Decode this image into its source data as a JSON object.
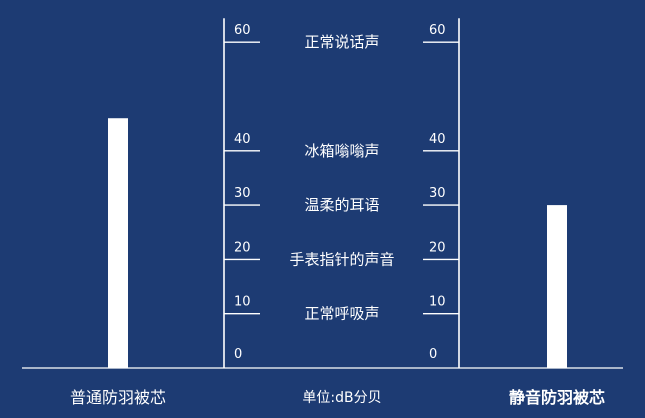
{
  "colors": {
    "background": "#1d3b73",
    "foreground": "#ffffff"
  },
  "unit_label": "单位:dB分贝",
  "chart_data": {
    "type": "bar",
    "categories": [
      "普通防羽被芯",
      "静音防羽被芯"
    ],
    "values": [
      46,
      30
    ],
    "ylim": [
      0,
      60
    ],
    "yticks": [
      0,
      10,
      20,
      30,
      40,
      60
    ],
    "reference_levels": [
      {
        "value": 60,
        "label": "正常说话声"
      },
      {
        "value": 40,
        "label": "冰箱嗡嗡声"
      },
      {
        "value": 30,
        "label": "温柔的耳语"
      },
      {
        "value": 20,
        "label": "手表指针的声音"
      },
      {
        "value": 10,
        "label": "正常呼吸声"
      }
    ],
    "grid": false,
    "legend": "none"
  }
}
